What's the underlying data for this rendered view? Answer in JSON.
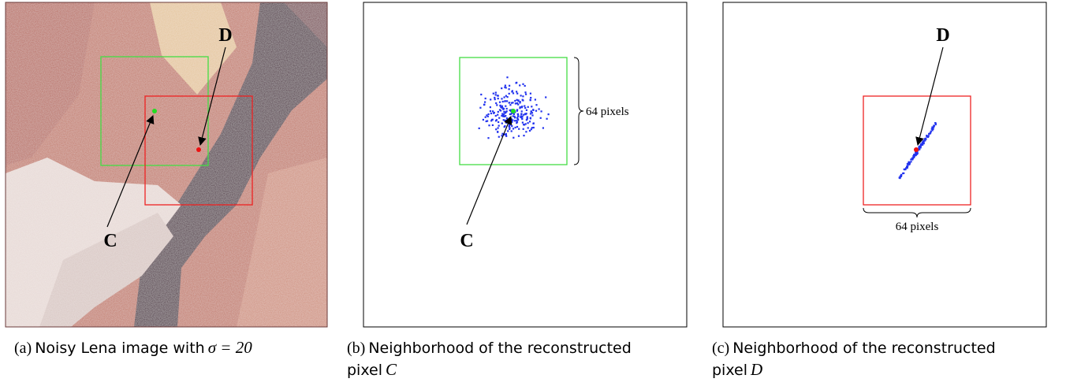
{
  "panels": [
    {
      "labels": [
        "D",
        "C"
      ],
      "caption": {
        "tag": "(a)",
        "text": "Noisy Lena image with",
        "math": "σ = 20"
      }
    },
    {
      "label": "C",
      "scale": "64 pixels",
      "caption": {
        "tag": "(b)",
        "text": "Neighborhood of the reconstructed",
        "text2": "pixel",
        "symbol": "C"
      }
    },
    {
      "label": "D",
      "scale": "64 pixels",
      "caption": {
        "tag": "(c)",
        "text": "Neighborhood of the reconstructed",
        "text2": "pixel",
        "symbol": "D"
      }
    }
  ]
}
